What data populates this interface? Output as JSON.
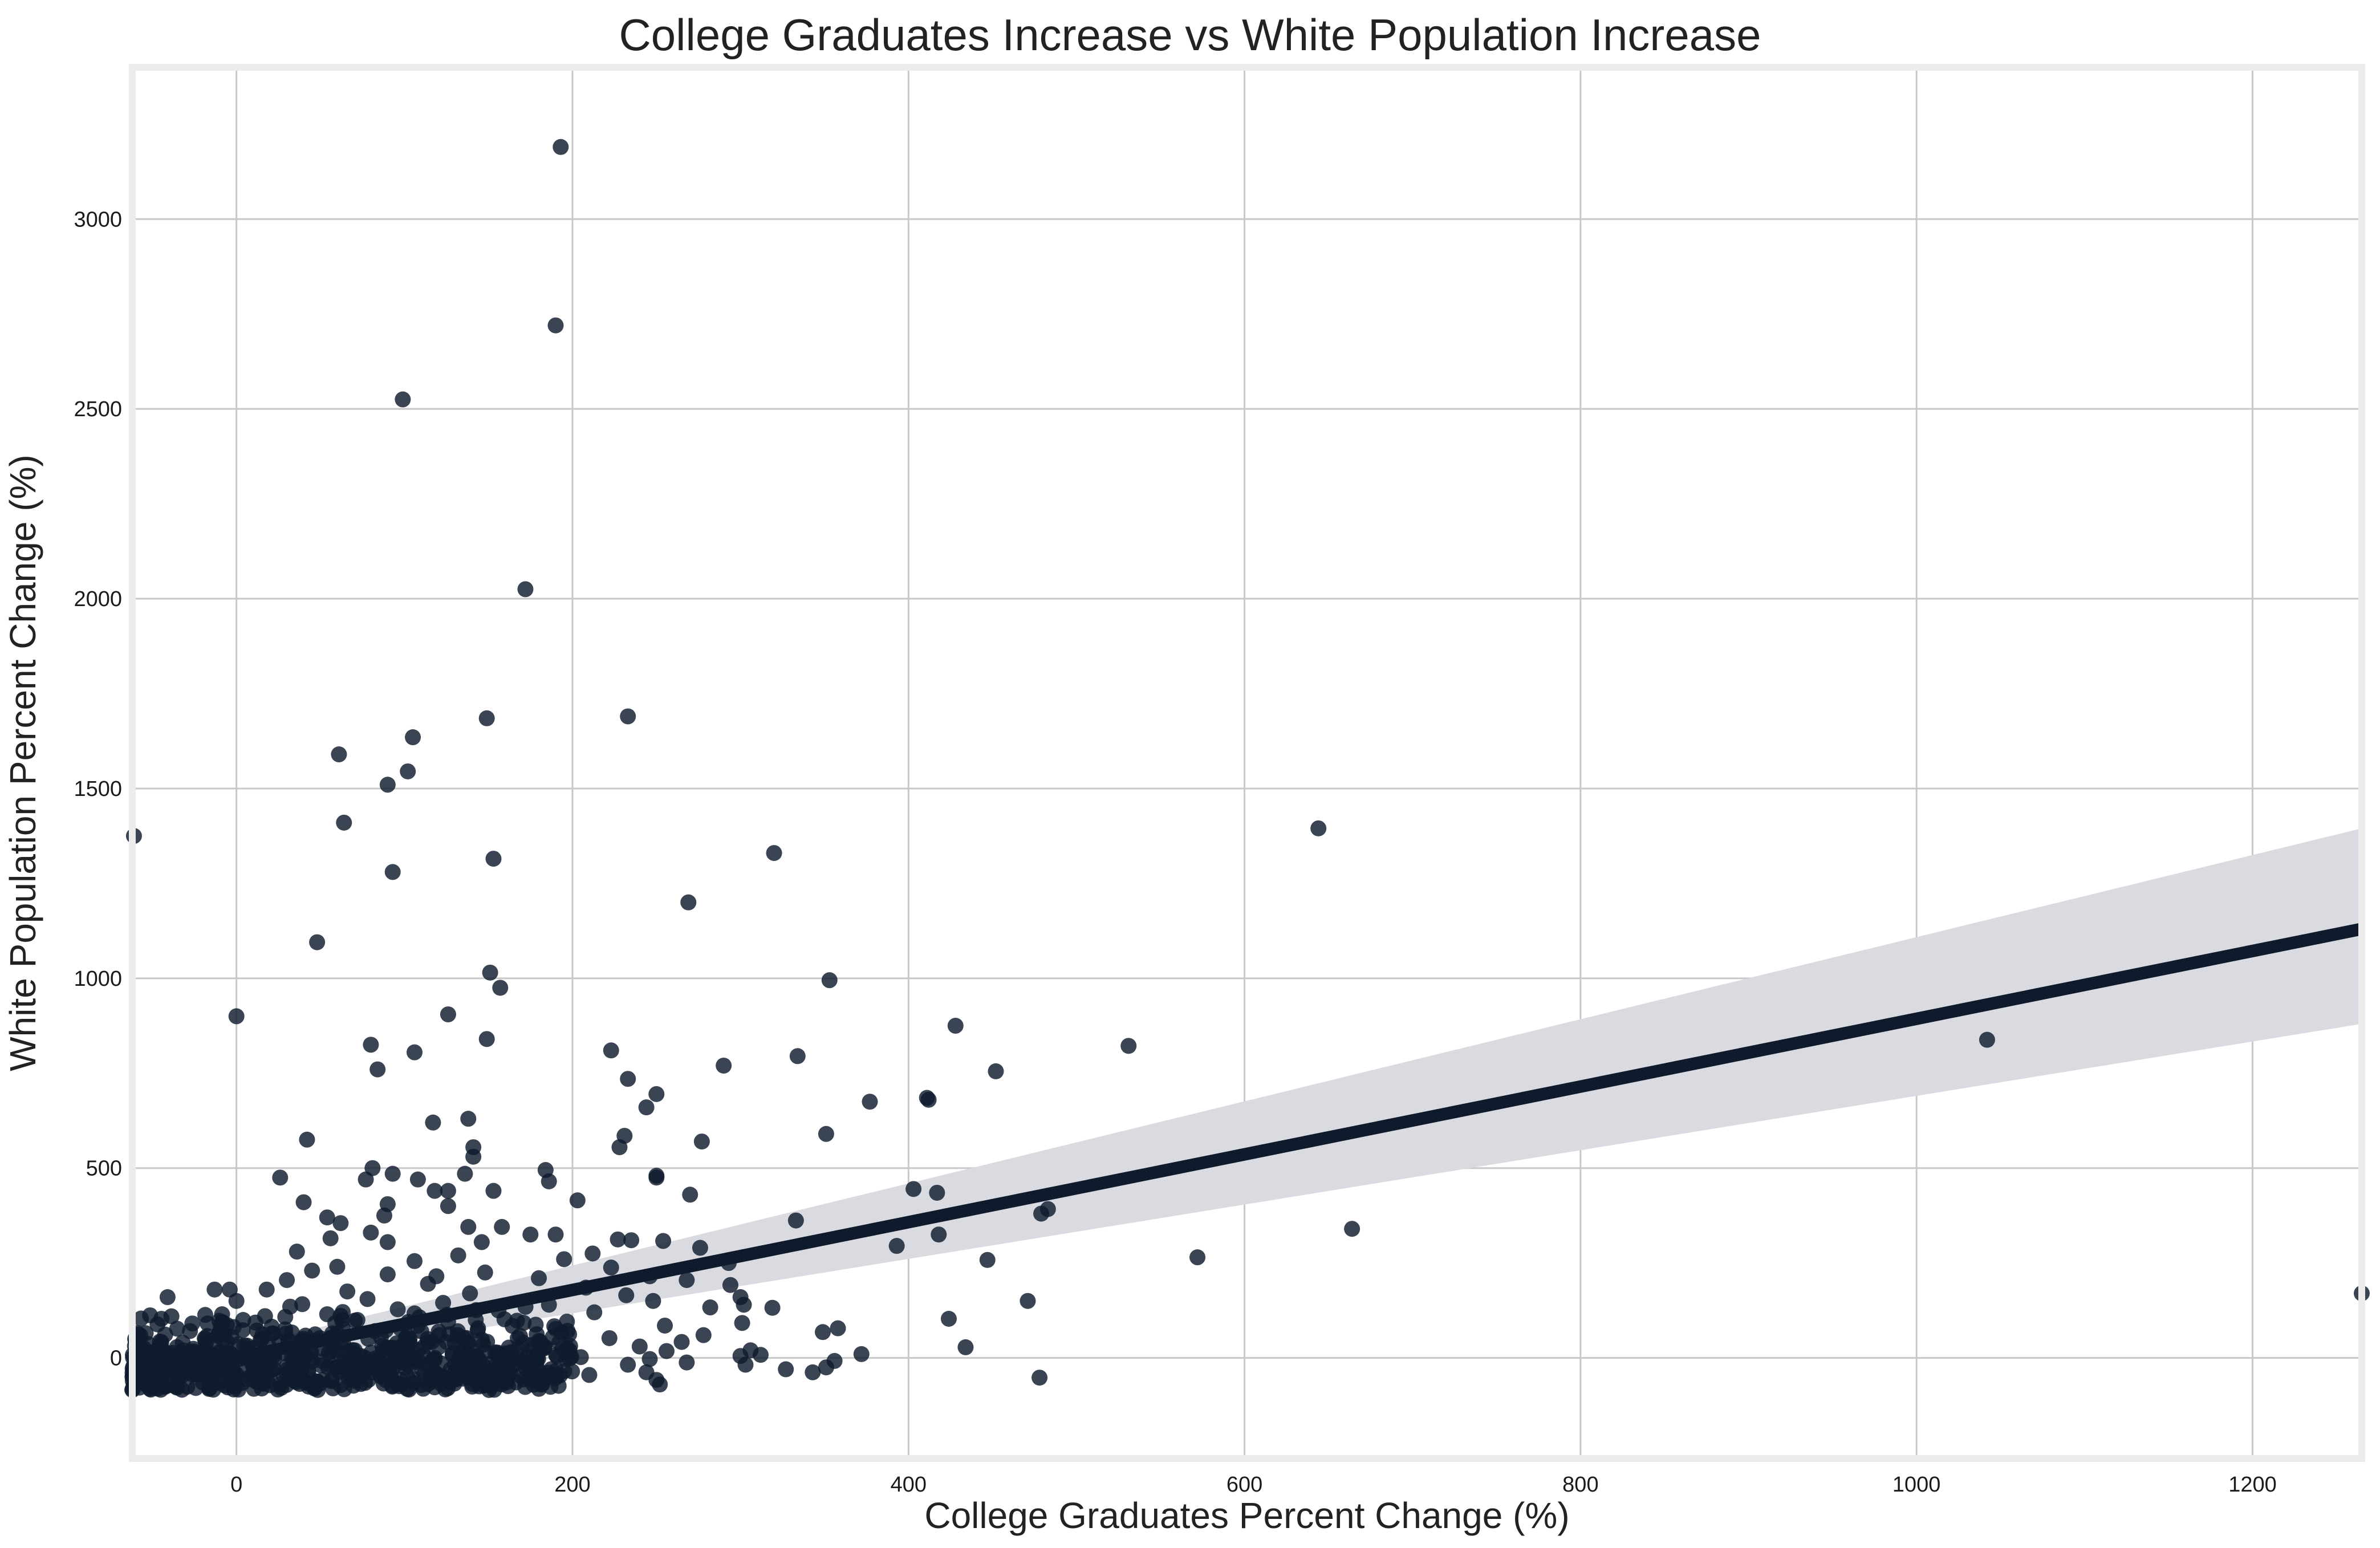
{
  "chart_data": {
    "type": "scatter",
    "title": "College Graduates Increase vs White Population Increase",
    "xlabel": "College Graduates Percent Change (%)",
    "ylabel": "White Population Percent Change (%)",
    "xlim": [
      -62,
      1265
    ],
    "ylim": [
      -265,
      3400
    ],
    "xticks": [
      0,
      200,
      400,
      600,
      800,
      1000,
      1200
    ],
    "yticks": [
      0,
      500,
      1000,
      1500,
      2000,
      2500,
      3000
    ],
    "grid": true,
    "colors": {
      "points": "#0f1b2d",
      "regression_line": "#0f1b2d",
      "confidence_band": "#d9dbe0",
      "grid": "#c8c8c8",
      "frame": "#ececec"
    },
    "regression": {
      "x": [
        -62,
        1265
      ],
      "y": [
        -55,
        1130
      ],
      "ci_upper": [
        -40,
        1395
      ],
      "ci_lower": [
        -70,
        880
      ]
    },
    "points": [
      {
        "x": 193,
        "y": 3190
      },
      {
        "x": 190,
        "y": 2720
      },
      {
        "x": 99,
        "y": 2525
      },
      {
        "x": 172,
        "y": 2025
      },
      {
        "x": 233,
        "y": 1690
      },
      {
        "x": 149,
        "y": 1685
      },
      {
        "x": 105,
        "y": 1635
      },
      {
        "x": 61,
        "y": 1590
      },
      {
        "x": 102,
        "y": 1545
      },
      {
        "x": 90,
        "y": 1510
      },
      {
        "x": 64,
        "y": 1410
      },
      {
        "x": -61,
        "y": 1375
      },
      {
        "x": 644,
        "y": 1395
      },
      {
        "x": 320,
        "y": 1330
      },
      {
        "x": 153,
        "y": 1315
      },
      {
        "x": 93,
        "y": 1280
      },
      {
        "x": 269,
        "y": 1200
      },
      {
        "x": 48,
        "y": 1095
      },
      {
        "x": 151,
        "y": 1015
      },
      {
        "x": 157,
        "y": 975
      },
      {
        "x": 353,
        "y": 995
      },
      {
        "x": 0,
        "y": 900
      },
      {
        "x": 126,
        "y": 905
      },
      {
        "x": 428,
        "y": 875
      },
      {
        "x": 80,
        "y": 825
      },
      {
        "x": 106,
        "y": 805
      },
      {
        "x": 149,
        "y": 840
      },
      {
        "x": 223,
        "y": 810
      },
      {
        "x": 334,
        "y": 795
      },
      {
        "x": 290,
        "y": 770
      },
      {
        "x": 84,
        "y": 760
      },
      {
        "x": 452,
        "y": 755
      },
      {
        "x": 531,
        "y": 822
      },
      {
        "x": 1042,
        "y": 838
      },
      {
        "x": 233,
        "y": 735
      },
      {
        "x": 250,
        "y": 695
      },
      {
        "x": 411,
        "y": 685
      },
      {
        "x": 412,
        "y": 680
      },
      {
        "x": 377,
        "y": 675
      },
      {
        "x": 244,
        "y": 660
      },
      {
        "x": 138,
        "y": 630
      },
      {
        "x": 117,
        "y": 620
      },
      {
        "x": 351,
        "y": 590
      },
      {
        "x": 231,
        "y": 585
      },
      {
        "x": 277,
        "y": 570
      },
      {
        "x": 42,
        "y": 575
      },
      {
        "x": 228,
        "y": 555
      },
      {
        "x": 141,
        "y": 555
      },
      {
        "x": 141,
        "y": 530
      },
      {
        "x": 81,
        "y": 500
      },
      {
        "x": 184,
        "y": 495
      },
      {
        "x": 93,
        "y": 485
      },
      {
        "x": 136,
        "y": 485
      },
      {
        "x": 250,
        "y": 480
      },
      {
        "x": 26,
        "y": 475
      },
      {
        "x": 250,
        "y": 475
      },
      {
        "x": 77,
        "y": 470
      },
      {
        "x": 108,
        "y": 470
      },
      {
        "x": 186,
        "y": 465
      },
      {
        "x": 403,
        "y": 445
      },
      {
        "x": 118,
        "y": 440
      },
      {
        "x": 126,
        "y": 440
      },
      {
        "x": 153,
        "y": 440
      },
      {
        "x": 417,
        "y": 435
      },
      {
        "x": 270,
        "y": 430
      },
      {
        "x": 203,
        "y": 415
      },
      {
        "x": 40,
        "y": 410
      },
      {
        "x": 90,
        "y": 405
      },
      {
        "x": 126,
        "y": 400
      },
      {
        "x": 483,
        "y": 392
      },
      {
        "x": 479,
        "y": 380
      },
      {
        "x": 88,
        "y": 375
      },
      {
        "x": 54,
        "y": 370
      },
      {
        "x": 333,
        "y": 362
      },
      {
        "x": 62,
        "y": 355
      },
      {
        "x": 138,
        "y": 345
      },
      {
        "x": 158,
        "y": 345
      },
      {
        "x": 664,
        "y": 340
      },
      {
        "x": 80,
        "y": 330
      },
      {
        "x": 175,
        "y": 325
      },
      {
        "x": 190,
        "y": 325
      },
      {
        "x": 418,
        "y": 325
      },
      {
        "x": 56,
        "y": 315
      },
      {
        "x": 227,
        "y": 312
      },
      {
        "x": 235,
        "y": 310
      },
      {
        "x": 254,
        "y": 308
      },
      {
        "x": 90,
        "y": 305
      },
      {
        "x": 146,
        "y": 305
      },
      {
        "x": 393,
        "y": 295
      },
      {
        "x": 276,
        "y": 290
      },
      {
        "x": 36,
        "y": 280
      },
      {
        "x": 212,
        "y": 275
      },
      {
        "x": 132,
        "y": 270
      },
      {
        "x": 572,
        "y": 265
      },
      {
        "x": 447,
        "y": 258
      },
      {
        "x": 195,
        "y": 260
      },
      {
        "x": 106,
        "y": 255
      },
      {
        "x": 60,
        "y": 240
      },
      {
        "x": 223,
        "y": 238
      },
      {
        "x": 293,
        "y": 250
      },
      {
        "x": 45,
        "y": 230
      },
      {
        "x": 148,
        "y": 225
      },
      {
        "x": 90,
        "y": 220
      },
      {
        "x": 119,
        "y": 215
      },
      {
        "x": 180,
        "y": 210
      },
      {
        "x": 246,
        "y": 215
      },
      {
        "x": 30,
        "y": 205
      },
      {
        "x": 268,
        "y": 205
      },
      {
        "x": 114,
        "y": 195
      },
      {
        "x": 294,
        "y": 192
      },
      {
        "x": 208,
        "y": 185
      },
      {
        "x": -13,
        "y": 180
      },
      {
        "x": -4,
        "y": 180
      },
      {
        "x": 18,
        "y": 180
      },
      {
        "x": 66,
        "y": 175
      },
      {
        "x": 139,
        "y": 170
      },
      {
        "x": 232,
        "y": 165
      },
      {
        "x": 300,
        "y": 160
      },
      {
        "x": -41,
        "y": 160
      },
      {
        "x": 78,
        "y": 155
      },
      {
        "x": 248,
        "y": 150
      },
      {
        "x": 0,
        "y": 150
      },
      {
        "x": 471,
        "y": 150
      },
      {
        "x": 123,
        "y": 145
      },
      {
        "x": 302,
        "y": 140
      },
      {
        "x": 186,
        "y": 140
      },
      {
        "x": 32,
        "y": 135
      },
      {
        "x": 282,
        "y": 133
      },
      {
        "x": 319,
        "y": 132
      },
      {
        "x": 96,
        "y": 128
      },
      {
        "x": 156,
        "y": 125
      },
      {
        "x": 213,
        "y": 120
      },
      {
        "x": 54,
        "y": 115
      },
      {
        "x": 17,
        "y": 110
      },
      {
        "x": 424,
        "y": 103
      },
      {
        "x": 4,
        "y": 100
      },
      {
        "x": 72,
        "y": 100
      },
      {
        "x": 167,
        "y": 98
      },
      {
        "x": 126,
        "y": 95
      },
      {
        "x": 301,
        "y": 92
      },
      {
        "x": 255,
        "y": 85
      },
      {
        "x": 358,
        "y": 78
      },
      {
        "x": 29,
        "y": 75
      },
      {
        "x": 349,
        "y": 68
      },
      {
        "x": 110,
        "y": 70
      },
      {
        "x": 60,
        "y": 65
      },
      {
        "x": -54,
        "y": 65
      },
      {
        "x": 198,
        "y": 62
      },
      {
        "x": 278,
        "y": 60
      },
      {
        "x": 86,
        "y": 55
      },
      {
        "x": 222,
        "y": 52
      },
      {
        "x": 15,
        "y": 50
      },
      {
        "x": 146,
        "y": 48
      },
      {
        "x": 40,
        "y": 45
      },
      {
        "x": 180,
        "y": 45
      },
      {
        "x": 265,
        "y": 42
      },
      {
        "x": -32,
        "y": 40
      },
      {
        "x": 130,
        "y": 38
      },
      {
        "x": 434,
        "y": 28
      },
      {
        "x": 240,
        "y": 30
      },
      {
        "x": 98,
        "y": 30
      },
      {
        "x": 58,
        "y": 25
      },
      {
        "x": 183,
        "y": 25
      },
      {
        "x": 306,
        "y": 20
      },
      {
        "x": 256,
        "y": 18
      },
      {
        "x": 372,
        "y": 10
      },
      {
        "x": -10,
        "y": 15
      },
      {
        "x": 160,
        "y": 12
      },
      {
        "x": 22,
        "y": 10
      },
      {
        "x": 312,
        "y": 8
      },
      {
        "x": 300,
        "y": 5
      },
      {
        "x": 74,
        "y": 5
      },
      {
        "x": 205,
        "y": 2
      },
      {
        "x": 118,
        "y": 0
      },
      {
        "x": 246,
        "y": -3
      },
      {
        "x": -28,
        "y": -5
      },
      {
        "x": 44,
        "y": -5
      },
      {
        "x": 356,
        "y": -8
      },
      {
        "x": 170,
        "y": -10
      },
      {
        "x": 268,
        "y": -12
      },
      {
        "x": 10,
        "y": -15
      },
      {
        "x": 233,
        "y": -18
      },
      {
        "x": 303,
        "y": -18
      },
      {
        "x": 88,
        "y": -20
      },
      {
        "x": 140,
        "y": -22
      },
      {
        "x": 351,
        "y": -25
      },
      {
        "x": 327,
        "y": -30
      },
      {
        "x": -40,
        "y": -30
      },
      {
        "x": 62,
        "y": -32
      },
      {
        "x": 195,
        "y": -35
      },
      {
        "x": 343,
        "y": -38
      },
      {
        "x": 244,
        "y": -38
      },
      {
        "x": 112,
        "y": -40
      },
      {
        "x": 30,
        "y": -42
      },
      {
        "x": 210,
        "y": -45
      },
      {
        "x": 155,
        "y": -48
      },
      {
        "x": 478,
        "y": -52
      },
      {
        "x": -58,
        "y": -52
      },
      {
        "x": 6,
        "y": -55
      },
      {
        "x": 72,
        "y": -55
      },
      {
        "x": 250,
        "y": -58
      },
      {
        "x": 180,
        "y": -60
      },
      {
        "x": 126,
        "y": -62
      },
      {
        "x": 48,
        "y": -62
      },
      {
        "x": -20,
        "y": -65
      },
      {
        "x": 96,
        "y": -68
      },
      {
        "x": 252,
        "y": -70
      },
      {
        "x": 20,
        "y": -72
      },
      {
        "x": 1265,
        "y": 170
      }
    ],
    "dense_cluster": {
      "x_range": [
        -62,
        200
      ],
      "y_range": [
        -85,
        150
      ],
      "count": 650
    }
  }
}
